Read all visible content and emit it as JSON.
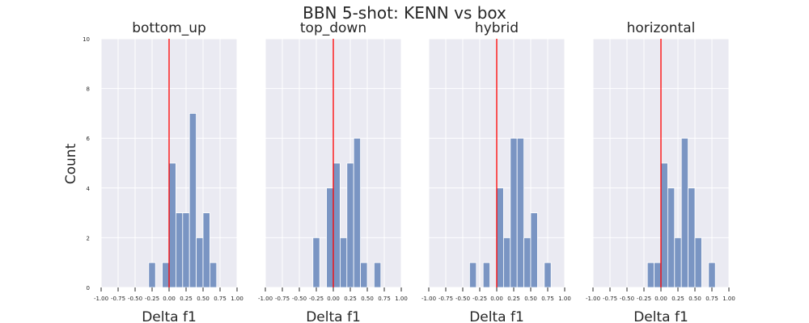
{
  "figure": {
    "title": "BBN 5-shot: KENN vs box"
  },
  "chart_data": {
    "type": "bar",
    "ylabel": "Count",
    "xlabel": "Delta f1",
    "xlim": [
      -1.0,
      1.0
    ],
    "ylim": [
      0,
      10
    ],
    "xticks": [
      "-1.00",
      "-0.75",
      "-0.50",
      "-0.25",
      "0.00",
      "0.25",
      "0.50",
      "0.75",
      "1.00"
    ],
    "xtick_values": [
      -1.0,
      -0.75,
      -0.5,
      -0.25,
      0.0,
      0.25,
      0.5,
      0.75,
      1.0
    ],
    "yticks": [
      "0",
      "2",
      "4",
      "6",
      "8",
      "10"
    ],
    "ytick_values": [
      0,
      2,
      4,
      6,
      8,
      10
    ],
    "bin_width": 0.1,
    "reference_line_x": 0.0,
    "grid": true,
    "colors": {
      "bar": "#7a95c3",
      "bar_edge": "#ffffff",
      "reference_line": "#ff0000",
      "plot_background": "#eaeaf2",
      "grid": "#ffffff"
    },
    "panels": [
      {
        "title": "bottom_up",
        "bins": [
          {
            "x0": -0.3,
            "x1": -0.2,
            "count": 1
          },
          {
            "x0": -0.1,
            "x1": 0.0,
            "count": 1
          },
          {
            "x0": 0.0,
            "x1": 0.1,
            "count": 5
          },
          {
            "x0": 0.1,
            "x1": 0.2,
            "count": 3
          },
          {
            "x0": 0.2,
            "x1": 0.3,
            "count": 3
          },
          {
            "x0": 0.3,
            "x1": 0.4,
            "count": 7
          },
          {
            "x0": 0.4,
            "x1": 0.5,
            "count": 2
          },
          {
            "x0": 0.5,
            "x1": 0.6,
            "count": 3
          },
          {
            "x0": 0.6,
            "x1": 0.7,
            "count": 1
          }
        ]
      },
      {
        "title": "top_down",
        "bins": [
          {
            "x0": -0.3,
            "x1": -0.2,
            "count": 2
          },
          {
            "x0": -0.1,
            "x1": 0.0,
            "count": 4
          },
          {
            "x0": 0.0,
            "x1": 0.1,
            "count": 5
          },
          {
            "x0": 0.1,
            "x1": 0.2,
            "count": 2
          },
          {
            "x0": 0.2,
            "x1": 0.3,
            "count": 5
          },
          {
            "x0": 0.3,
            "x1": 0.4,
            "count": 6
          },
          {
            "x0": 0.4,
            "x1": 0.5,
            "count": 1
          },
          {
            "x0": 0.6,
            "x1": 0.7,
            "count": 1
          }
        ]
      },
      {
        "title": "hybrid",
        "bins": [
          {
            "x0": -0.4,
            "x1": -0.3,
            "count": 1
          },
          {
            "x0": -0.2,
            "x1": -0.1,
            "count": 1
          },
          {
            "x0": 0.0,
            "x1": 0.1,
            "count": 4
          },
          {
            "x0": 0.1,
            "x1": 0.2,
            "count": 2
          },
          {
            "x0": 0.2,
            "x1": 0.3,
            "count": 6
          },
          {
            "x0": 0.3,
            "x1": 0.4,
            "count": 6
          },
          {
            "x0": 0.4,
            "x1": 0.5,
            "count": 2
          },
          {
            "x0": 0.5,
            "x1": 0.6,
            "count": 3
          },
          {
            "x0": 0.7,
            "x1": 0.8,
            "count": 1
          }
        ]
      },
      {
        "title": "horizontal",
        "bins": [
          {
            "x0": -0.2,
            "x1": -0.1,
            "count": 1
          },
          {
            "x0": -0.1,
            "x1": 0.0,
            "count": 1
          },
          {
            "x0": 0.0,
            "x1": 0.1,
            "count": 5
          },
          {
            "x0": 0.1,
            "x1": 0.2,
            "count": 4
          },
          {
            "x0": 0.2,
            "x1": 0.3,
            "count": 2
          },
          {
            "x0": 0.3,
            "x1": 0.4,
            "count": 6
          },
          {
            "x0": 0.4,
            "x1": 0.5,
            "count": 4
          },
          {
            "x0": 0.5,
            "x1": 0.6,
            "count": 2
          },
          {
            "x0": 0.7,
            "x1": 0.8,
            "count": 1
          }
        ]
      }
    ]
  }
}
